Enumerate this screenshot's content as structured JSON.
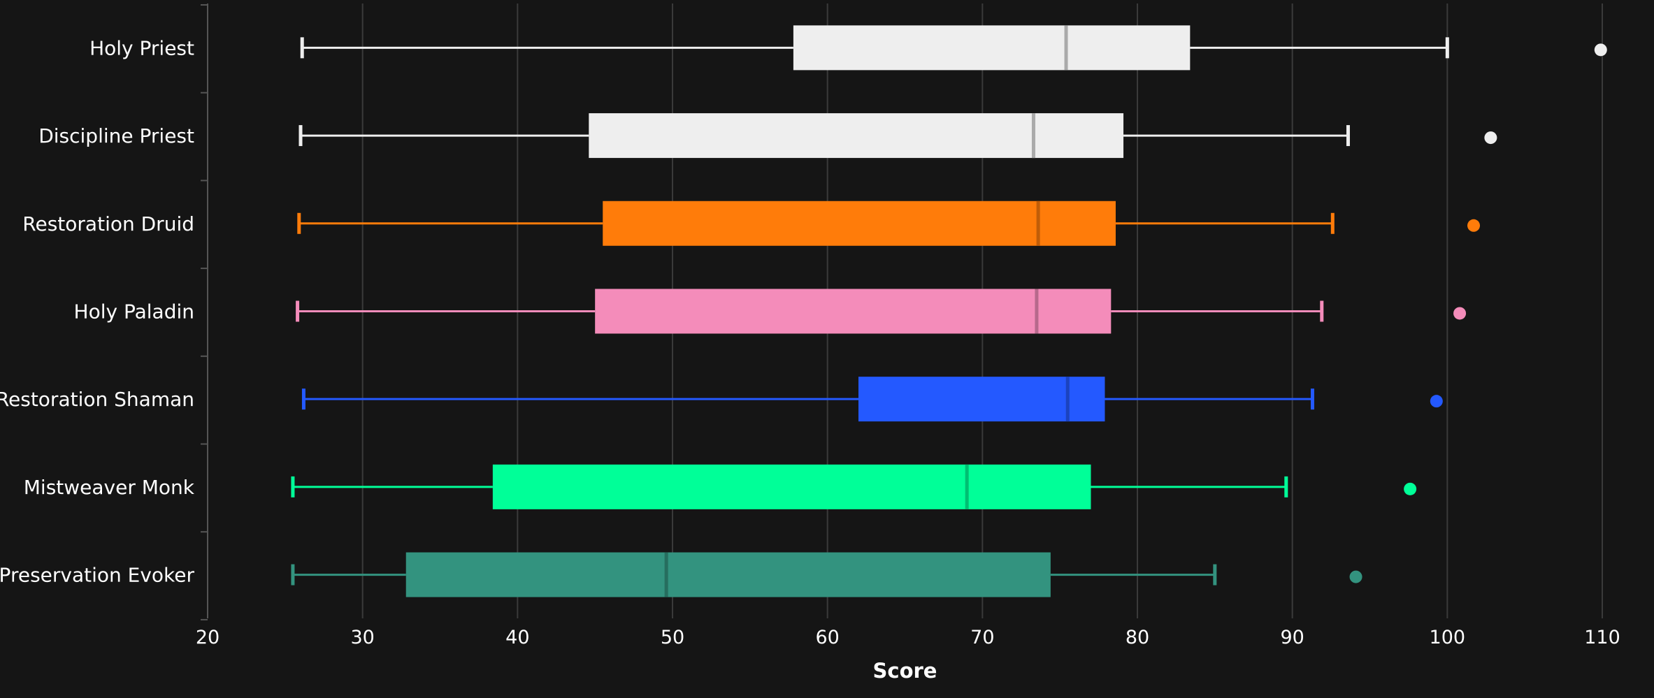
{
  "chart_data": {
    "type": "box",
    "xlabel": "Score",
    "xlim": [
      20,
      110
    ],
    "x_ticks": [
      20,
      30,
      40,
      50,
      60,
      70,
      80,
      90,
      100,
      110
    ],
    "x_tick_labels": [
      "20",
      "30",
      "40",
      "50",
      "60",
      "70",
      "80",
      "90",
      "100",
      "110"
    ],
    "grid": "vertical",
    "background": "#151515",
    "series": [
      {
        "name": "Holy Priest",
        "color": "#eeeeee",
        "median_color": "#aaaaaa",
        "min": 26.1,
        "q1": 57.8,
        "median": 75.4,
        "q3": 83.4,
        "max": 100.0,
        "outlier": 109.9
      },
      {
        "name": "Discipline Priest",
        "color": "#eeeeee",
        "median_color": "#aaaaaa",
        "min": 26.0,
        "q1": 44.6,
        "median": 73.3,
        "q3": 79.1,
        "max": 93.6,
        "outlier": 102.8
      },
      {
        "name": "Restoration Druid",
        "color": "#ff7c0a",
        "median_color": "#c05d08",
        "min": 25.9,
        "q1": 45.5,
        "median": 73.6,
        "q3": 78.6,
        "max": 92.6,
        "outlier": 101.7
      },
      {
        "name": "Holy Paladin",
        "color": "#f48cba",
        "median_color": "#b7698c",
        "min": 25.8,
        "q1": 45.0,
        "median": 73.5,
        "q3": 78.3,
        "max": 91.9,
        "outlier": 100.8
      },
      {
        "name": "Restoration Shaman",
        "color": "#2459ff",
        "median_color": "#1b43bf",
        "min": 26.2,
        "q1": 62.0,
        "median": 75.5,
        "q3": 77.9,
        "max": 91.3,
        "outlier": 99.3
      },
      {
        "name": "Mistweaver Monk",
        "color": "#00ff98",
        "median_color": "#00bf72",
        "min": 25.5,
        "q1": 38.4,
        "median": 69.0,
        "q3": 77.0,
        "max": 89.6,
        "outlier": 97.6
      },
      {
        "name": "Preservation Evoker",
        "color": "#33937f",
        "median_color": "#266e5f",
        "min": 25.5,
        "q1": 32.8,
        "median": 49.6,
        "q3": 74.4,
        "max": 85.0,
        "outlier": 94.1
      }
    ]
  }
}
